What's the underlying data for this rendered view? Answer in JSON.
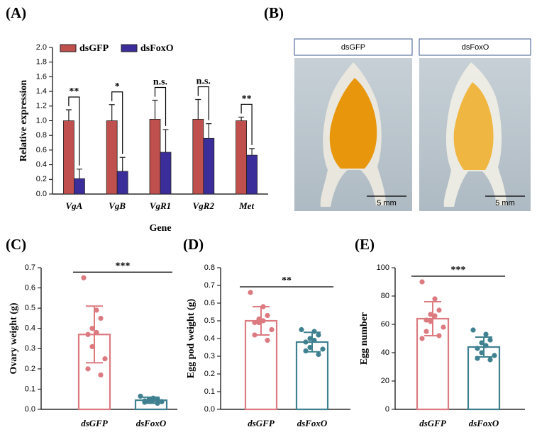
{
  "chart_data": [
    {
      "type": "bar",
      "panel_label": "(A)",
      "y_label": "Relative expression",
      "x_label": "Gene",
      "categories": [
        "VgA",
        "VgB",
        "VgR1",
        "VgR2",
        "Met"
      ],
      "series": [
        {
          "name": "dsGFP",
          "color": "#c0504d",
          "values": [
            1.0,
            1.0,
            1.02,
            1.02,
            1.0
          ],
          "errors": [
            0.15,
            0.22,
            0.26,
            0.27,
            0.05
          ]
        },
        {
          "name": "dsFoxO",
          "color": "#3b2e9a",
          "values": [
            0.21,
            0.31,
            0.57,
            0.76,
            0.53
          ],
          "errors": [
            0.13,
            0.19,
            0.31,
            0.2,
            0.09
          ]
        }
      ],
      "significance": [
        "**",
        "*",
        "n.s.",
        "n.s.",
        "**"
      ],
      "ylim": [
        0,
        2.0
      ],
      "yticks": [
        {
          "value": 0,
          "label": "0.0"
        },
        0.2,
        0.4,
        0.6,
        0.8,
        {
          "value": 1,
          "label": "1.0"
        },
        1.2,
        1.4,
        1.6,
        1.8,
        {
          "value": 2,
          "label": "2.0"
        }
      ]
    },
    {
      "type": "dotbar",
      "panel_label": "(C)",
      "y_label": "Ovary weight (g)",
      "categories": [
        "dsGFP",
        "dsFoxO"
      ],
      "colors": [
        "#dc7a80",
        "#3f8190"
      ],
      "means": [
        0.37,
        0.045
      ],
      "sd": [
        0.14,
        0.015
      ],
      "points": [
        [
          0.65,
          0.49,
          0.45,
          0.4,
          0.38,
          0.37,
          0.31,
          0.25,
          0.2,
          0.17
        ],
        [
          0.065,
          0.055,
          0.05,
          0.048,
          0.045,
          0.042,
          0.04,
          0.038,
          0.035,
          0.03
        ]
      ],
      "significance": "***",
      "ylim": [
        0,
        0.7
      ],
      "yticks": [
        {
          "value": 0,
          "label": "0.0"
        },
        0.1,
        0.2,
        0.3,
        0.4,
        0.5,
        0.6,
        0.7
      ]
    },
    {
      "type": "dotbar",
      "panel_label": "(D)",
      "y_label": "Egg pod weight (g)",
      "categories": [
        "dsGFP",
        "dsFoxO"
      ],
      "colors": [
        "#dc7a80",
        "#3f8190"
      ],
      "means": [
        0.5,
        0.38
      ],
      "sd": [
        0.08,
        0.055
      ],
      "points": [
        [
          0.66,
          0.58,
          0.53,
          0.51,
          0.5,
          0.49,
          0.49,
          0.45,
          0.42,
          0.39
        ],
        [
          0.45,
          0.44,
          0.42,
          0.4,
          0.39,
          0.38,
          0.35,
          0.34,
          0.33,
          0.31
        ]
      ],
      "significance": "**",
      "ylim": [
        0,
        0.8
      ],
      "yticks": [
        {
          "value": 0,
          "label": "0.0"
        },
        0.1,
        0.2,
        0.3,
        0.4,
        0.5,
        0.6,
        0.7,
        0.8
      ]
    },
    {
      "type": "dotbar",
      "panel_label": "(E)",
      "y_label": "Egg number",
      "categories": [
        "dsGFP",
        "dsFoxO"
      ],
      "colors": [
        "#dc7a80",
        "#3f8190"
      ],
      "means": [
        64,
        44
      ],
      "sd": [
        12,
        7
      ],
      "points": [
        [
          90,
          78,
          70,
          67,
          66,
          63,
          62,
          58,
          55,
          52,
          50
        ],
        [
          56,
          53,
          49,
          47,
          45,
          43,
          40,
          38,
          36,
          35
        ]
      ],
      "significance": "***",
      "ylim": [
        0,
        100
      ],
      "yticks": [
        0,
        20,
        40,
        60,
        80,
        100
      ]
    }
  ],
  "image_panel": {
    "panel_label": "(B)",
    "captions": [
      "dsGFP",
      "dsFoxO"
    ],
    "scale_bars": [
      "5 mm",
      "5 mm"
    ]
  }
}
